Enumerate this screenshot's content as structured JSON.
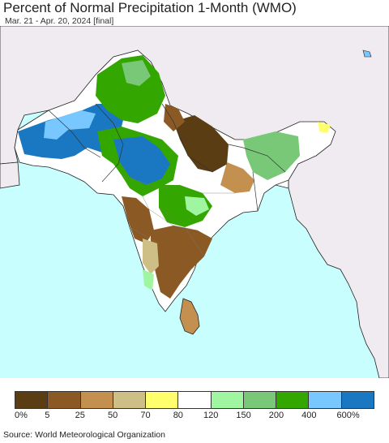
{
  "header": {
    "title": "Percent of Normal Precipitation 1-Month (WMO)",
    "subtitle": "Mar. 21 - Apr. 20, 2024 [final]"
  },
  "map": {
    "colors": {
      "ocean": "#c8fffe",
      "land_outside": "#f0ebf0",
      "border": "#222222"
    }
  },
  "legend": {
    "colors": [
      "#5a3d12",
      "#8b5a24",
      "#c49050",
      "#cdbf85",
      "#ffff6e",
      "#ffffff",
      "#a0f5a0",
      "#78c878",
      "#33a600",
      "#78c8ff",
      "#1a78c2"
    ],
    "labels": [
      "0%",
      "5",
      "25",
      "50",
      "70",
      "80",
      "120",
      "150",
      "200",
      "400",
      "600%"
    ]
  },
  "footer": {
    "source": "Source: World Meteorological Organization"
  }
}
